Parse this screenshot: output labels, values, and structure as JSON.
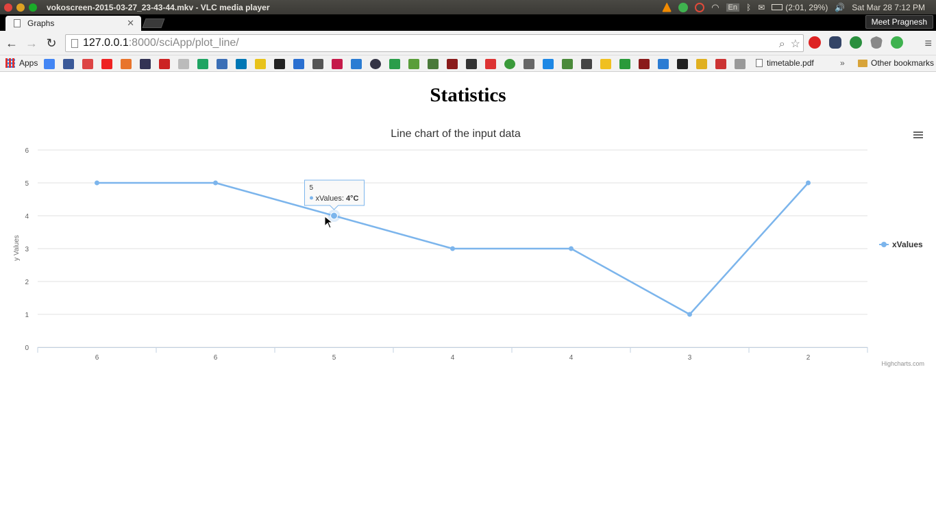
{
  "os_bar": {
    "window_title": "vokoscreen-2015-03-27_23-43-44.mkv - VLC media player",
    "battery": "(2:01, 29%)",
    "clock": "Sat Mar 28  7:12 PM",
    "keyboard": "En",
    "tray_icons": [
      "vlc-icon",
      "chat-icon",
      "alarm-icon",
      "wifi-icon",
      "keyboard-icon",
      "bluetooth-icon",
      "mail-icon",
      "battery-icon",
      "volume-icon",
      "apple-icon"
    ]
  },
  "browser": {
    "tab_title": "Graphs",
    "profile_name": "Meet Pragnesh",
    "url_host": "127.0.0.1",
    "url_rest": ":8000/sciApp/plot_line/",
    "bookmarks": {
      "apps_label": "Apps",
      "pdf_label": "timetable.pdf",
      "more_label": "»",
      "other_label": "Other bookmarks"
    }
  },
  "page": {
    "heading": "Statistics"
  },
  "chart_data": {
    "type": "line",
    "title": "Line chart of the input data",
    "ylabel": "y Values",
    "xlabel": "",
    "categories": [
      "6",
      "6",
      "5",
      "4",
      "4",
      "3",
      "2"
    ],
    "series": [
      {
        "name": "xValues",
        "values": [
          5,
          5,
          4,
          3,
          3,
          1,
          5
        ],
        "color": "#7cb5ec"
      }
    ],
    "ylim": [
      0,
      6
    ],
    "yticks": [
      0,
      1,
      2,
      3,
      4,
      5,
      6
    ],
    "grid": true,
    "legend_position": "right",
    "tooltip": {
      "point_index": 2,
      "header": "5",
      "series_label": "xValues: ",
      "value_text": "4°C"
    },
    "credits": "Highcharts.com"
  }
}
